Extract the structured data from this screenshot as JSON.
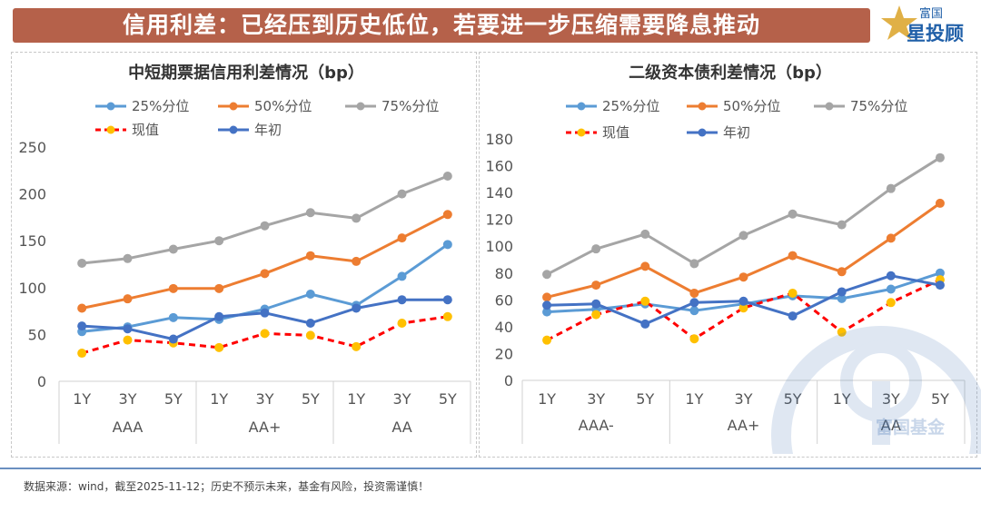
{
  "header": {
    "title": "信用利差：已经压到历史低位，若要进一步压缩需要降息推动"
  },
  "logo": {
    "text_top": "富国",
    "text_main": "星投顾",
    "watermark": "富国基金"
  },
  "footnote": "数据来源：wind，截至2025-11-12；历史不预示未来，基金有风险，投资需谨慎！",
  "colors": {
    "banner": "#b5614a",
    "p25": "#5b9bd5",
    "p50": "#ed7d31",
    "p75": "#a5a5a5",
    "current": "#ff0000",
    "current_marker": "#ffc000",
    "start": "#4472c4"
  },
  "chart_data": [
    {
      "type": "line",
      "title": "中短期票据信用利差情况（bp）",
      "categories": [
        "1Y",
        "3Y",
        "5Y",
        "1Y",
        "3Y",
        "5Y",
        "1Y",
        "3Y",
        "5Y"
      ],
      "groups": [
        "AAA",
        "AA+",
        "AA"
      ],
      "ylim": [
        0,
        250
      ],
      "yticks": [
        0,
        50,
        100,
        150,
        200,
        250
      ],
      "series": [
        {
          "key": "p25",
          "name": "25%分位",
          "values": [
            53,
            58,
            68,
            66,
            77,
            93,
            81,
            112,
            146
          ]
        },
        {
          "key": "p50",
          "name": "50%分位",
          "values": [
            78,
            88,
            99,
            99,
            115,
            134,
            128,
            153,
            178
          ]
        },
        {
          "key": "p75",
          "name": "75%分位",
          "values": [
            126,
            131,
            141,
            150,
            166,
            180,
            174,
            200,
            219
          ]
        },
        {
          "key": "current",
          "name": "现值",
          "values": [
            30,
            44,
            41,
            36,
            51,
            49,
            37,
            62,
            69
          ]
        },
        {
          "key": "start",
          "name": "年初",
          "values": [
            59,
            56,
            45,
            69,
            73,
            62,
            78,
            87,
            87
          ]
        }
      ]
    },
    {
      "type": "line",
      "title": "二级资本债利差情况（bp）",
      "categories": [
        "1Y",
        "3Y",
        "5Y",
        "1Y",
        "3Y",
        "5Y",
        "1Y",
        "3Y",
        "5Y"
      ],
      "groups": [
        "AAA-",
        "AA+",
        "AA"
      ],
      "ylim": [
        0,
        180
      ],
      "yticks": [
        0,
        20,
        40,
        60,
        80,
        100,
        120,
        140,
        160,
        180
      ],
      "series": [
        {
          "key": "p25",
          "name": "25%分位",
          "values": [
            51,
            53,
            57,
            52,
            57,
            63,
            61,
            68,
            80
          ]
        },
        {
          "key": "p50",
          "name": "50%分位",
          "values": [
            62,
            71,
            85,
            65,
            77,
            93,
            81,
            106,
            132
          ]
        },
        {
          "key": "p75",
          "name": "75%分位",
          "values": [
            79,
            98,
            109,
            87,
            108,
            124,
            116,
            143,
            166
          ]
        },
        {
          "key": "current",
          "name": "现值",
          "values": [
            30,
            49,
            59,
            31,
            54,
            65,
            36,
            58,
            75
          ]
        },
        {
          "key": "start",
          "name": "年初",
          "values": [
            56,
            57,
            42,
            58,
            59,
            48,
            66,
            78,
            71
          ]
        }
      ]
    }
  ]
}
